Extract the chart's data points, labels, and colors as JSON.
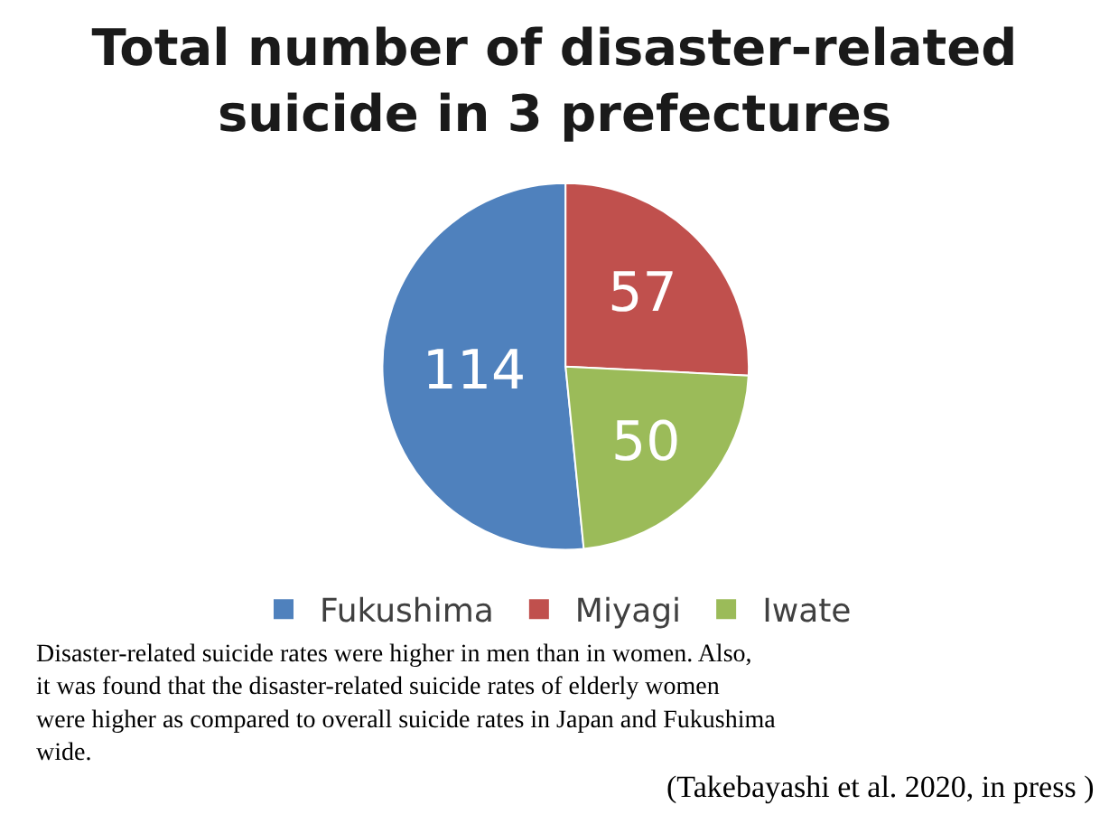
{
  "chart_data": {
    "type": "pie",
    "title": "Total number of disaster-related suicide in 3 prefectures",
    "categories": [
      "Fukushima",
      "Miyagi",
      "Iwate"
    ],
    "values": [
      114,
      57,
      50
    ],
    "colors": [
      "#4f81bd",
      "#c0504d",
      "#9bbb59"
    ],
    "data_labels": true,
    "legend": "bottom",
    "annotations": [
      "Disaster-related suicide rates were higher in men than in women. Also, it was found that the disaster-related suicide rates of elderly women were higher as compared to overall suicide rates in Japan and Fukushima wide.",
      "(Takebayashi et al. 2020, in press )"
    ]
  }
}
